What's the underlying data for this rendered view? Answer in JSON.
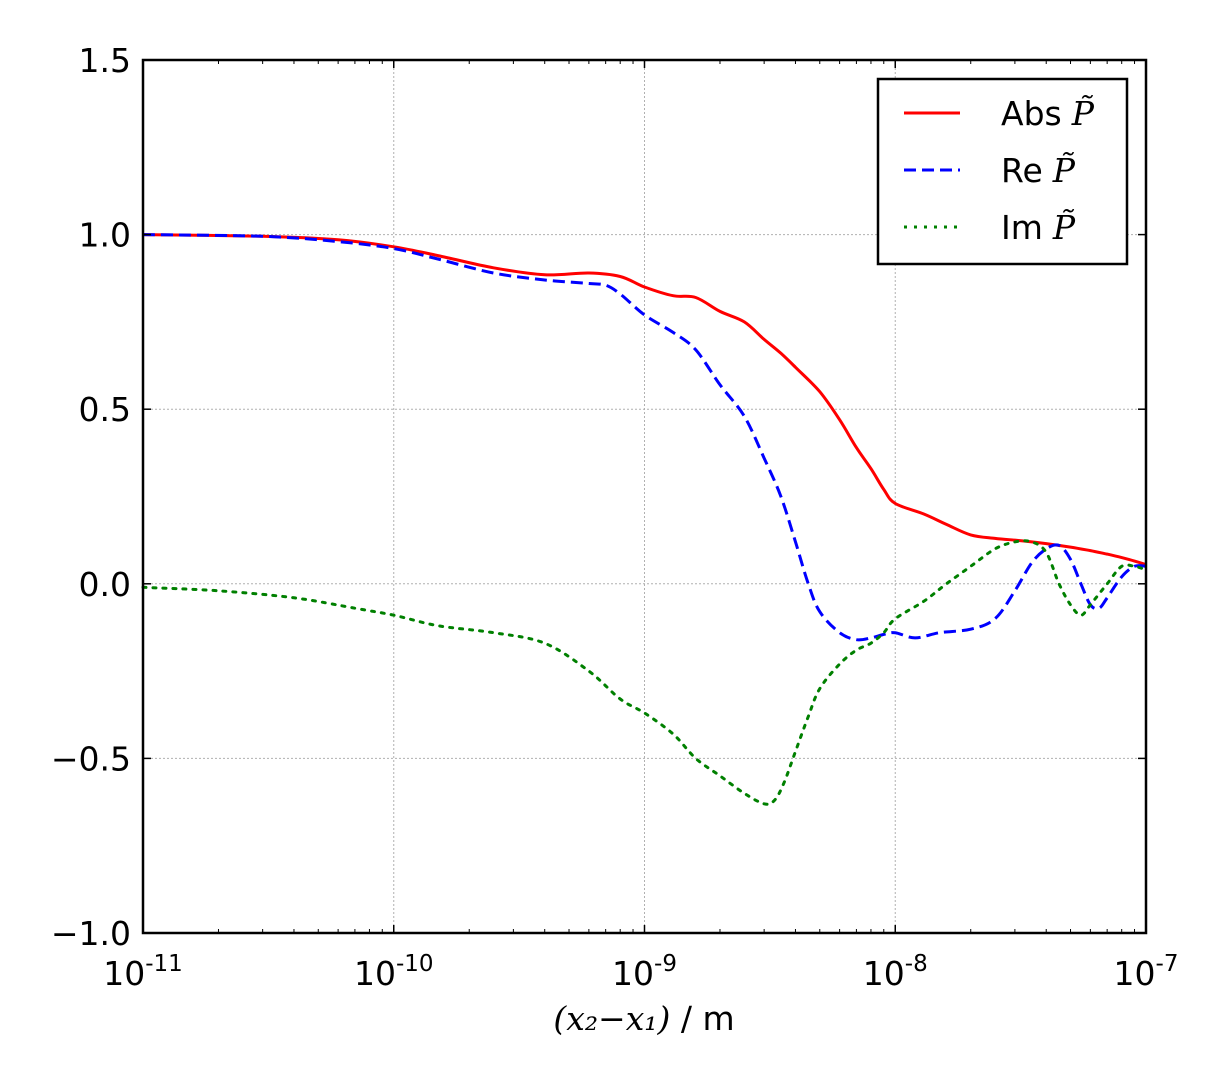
{
  "chart_data": {
    "type": "line",
    "title": "",
    "xscale": "log",
    "xlim": [
      1e-11,
      1e-07
    ],
    "ylim": [
      -1.0,
      1.5
    ],
    "grid": true,
    "legend_position": "top-right",
    "xlabel": {
      "math": "(x₂−x₁)",
      "unit": " / m"
    },
    "ylabel": "",
    "xticks": [
      {
        "base": "10",
        "exp": "-11",
        "value": 1e-11
      },
      {
        "base": "10",
        "exp": "-10",
        "value": 1e-10
      },
      {
        "base": "10",
        "exp": "-9",
        "value": 1e-09
      },
      {
        "base": "10",
        "exp": "-8",
        "value": 1e-08
      },
      {
        "base": "10",
        "exp": "-7",
        "value": 1e-07
      }
    ],
    "yticks": [
      {
        "label": "1.5",
        "value": 1.5
      },
      {
        "label": "1.0",
        "value": 1.0
      },
      {
        "label": "0.5",
        "value": 0.5
      },
      {
        "label": "0.0",
        "value": 0.0
      },
      {
        "label": "−0.5",
        "value": -0.5
      },
      {
        "label": "−1.0",
        "value": -1.0
      }
    ],
    "series": [
      {
        "name": "Abs",
        "legend_prefix": "Abs",
        "legend_symbol": "P̃",
        "color": "#ff0000",
        "style": "solid",
        "x": [
          1e-11,
          3e-11,
          6e-11,
          1e-10,
          1.5e-10,
          2.5e-10,
          4e-10,
          6e-10,
          8e-10,
          1e-09,
          1.3e-09,
          1.6e-09,
          2e-09,
          2.5e-09,
          3e-09,
          3.5e-09,
          4e-09,
          5e-09,
          6e-09,
          7e-09,
          8e-09,
          9e-09,
          1e-08,
          1.3e-08,
          1.6e-08,
          2e-08,
          2.5e-08,
          3e-08,
          3.5e-08,
          4e-08,
          5e-08,
          6e-08,
          7e-08,
          8e-08,
          9e-08,
          1e-07
        ],
        "y": [
          1.0,
          0.995,
          0.985,
          0.965,
          0.94,
          0.905,
          0.885,
          0.89,
          0.88,
          0.85,
          0.825,
          0.82,
          0.78,
          0.75,
          0.7,
          0.66,
          0.62,
          0.55,
          0.47,
          0.39,
          0.33,
          0.27,
          0.23,
          0.2,
          0.17,
          0.14,
          0.13,
          0.125,
          0.12,
          0.115,
          0.105,
          0.095,
          0.085,
          0.075,
          0.065,
          0.055
        ]
      },
      {
        "name": "Re",
        "legend_prefix": "Re",
        "legend_symbol": "P̃",
        "color": "#0000ff",
        "style": "dashed",
        "x": [
          1e-11,
          3e-11,
          6e-11,
          1e-10,
          1.5e-10,
          2.5e-10,
          4e-10,
          6e-10,
          7e-10,
          8e-10,
          1e-09,
          1.3e-09,
          1.6e-09,
          2e-09,
          2.5e-09,
          3e-09,
          3.5e-09,
          4e-09,
          4.5e-09,
          5e-09,
          6e-09,
          7e-09,
          8e-09,
          9e-09,
          1e-08,
          1.2e-08,
          1.5e-08,
          2e-08,
          2.5e-08,
          3e-08,
          3.5e-08,
          4e-08,
          4.5e-08,
          5e-08,
          5.5e-08,
          6e-08,
          6.5e-08,
          7e-08,
          8e-08,
          9e-08,
          1e-07
        ],
        "y": [
          1.0,
          0.995,
          0.98,
          0.96,
          0.93,
          0.89,
          0.87,
          0.86,
          0.855,
          0.83,
          0.77,
          0.72,
          0.67,
          0.57,
          0.48,
          0.36,
          0.25,
          0.12,
          0.0,
          -0.08,
          -0.14,
          -0.16,
          -0.155,
          -0.145,
          -0.14,
          -0.155,
          -0.14,
          -0.13,
          -0.1,
          -0.02,
          0.06,
          0.1,
          0.11,
          0.07,
          0.0,
          -0.06,
          -0.07,
          -0.04,
          0.02,
          0.05,
          0.05
        ]
      },
      {
        "name": "Im",
        "legend_prefix": "Im",
        "legend_symbol": "P̃",
        "color": "#008000",
        "style": "dotted",
        "x": [
          1e-11,
          2e-11,
          4e-11,
          7e-11,
          1e-10,
          1.5e-10,
          2.5e-10,
          4e-10,
          6e-10,
          8e-10,
          1e-09,
          1.3e-09,
          1.6e-09,
          2e-09,
          2.5e-09,
          3e-09,
          3.3e-09,
          3.6e-09,
          4e-09,
          4.5e-09,
          5e-09,
          6e-09,
          7e-09,
          8e-09,
          9e-09,
          1e-08,
          1.3e-08,
          1.6e-08,
          2e-08,
          2.5e-08,
          3e-08,
          3.5e-08,
          4e-08,
          4.5e-08,
          5e-08,
          5.5e-08,
          6e-08,
          7e-08,
          8e-08,
          9e-08,
          1e-07
        ],
        "y": [
          -0.01,
          -0.02,
          -0.04,
          -0.07,
          -0.09,
          -0.12,
          -0.14,
          -0.17,
          -0.25,
          -0.33,
          -0.37,
          -0.43,
          -0.5,
          -0.55,
          -0.6,
          -0.63,
          -0.62,
          -0.57,
          -0.48,
          -0.38,
          -0.3,
          -0.23,
          -0.19,
          -0.17,
          -0.14,
          -0.1,
          -0.05,
          0.0,
          0.05,
          0.1,
          0.12,
          0.12,
          0.09,
          0.0,
          -0.06,
          -0.09,
          -0.06,
          0.0,
          0.05,
          0.05,
          0.04
        ]
      }
    ]
  }
}
